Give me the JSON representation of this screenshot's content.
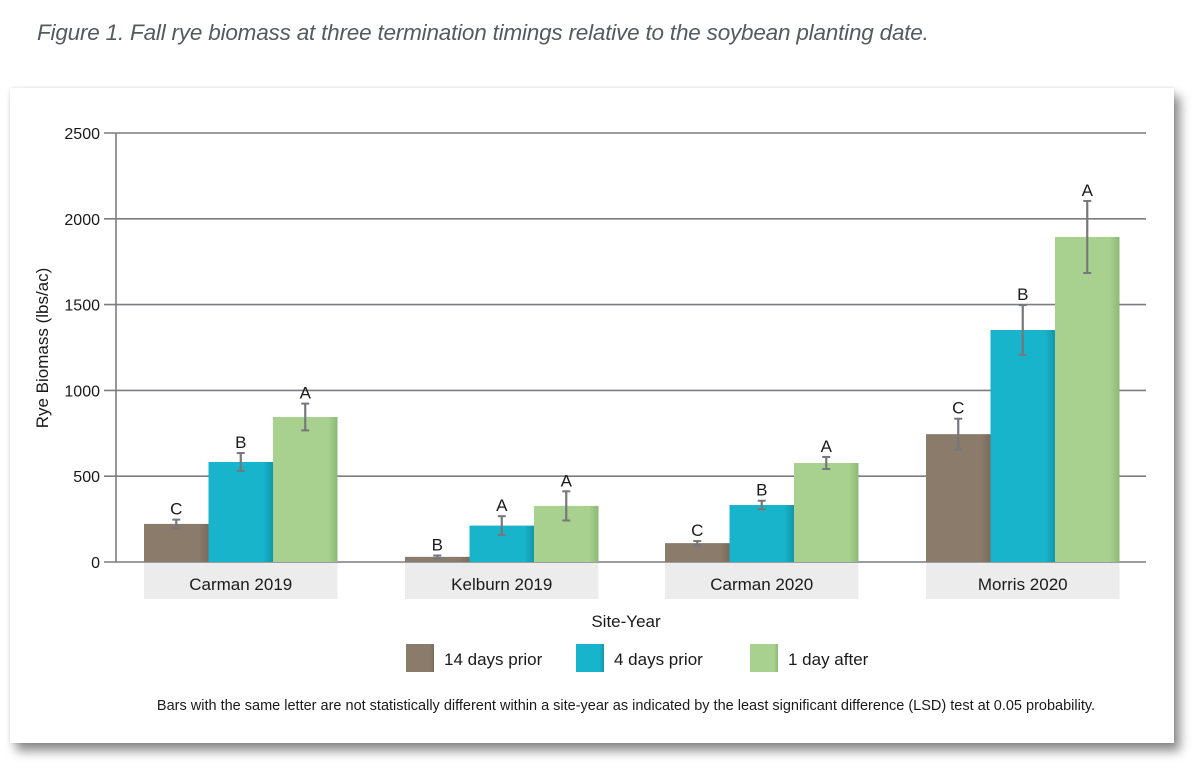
{
  "figure_title": "Figure 1. Fall rye biomass at three termination timings relative to the soybean planting date.",
  "footnote": "Bars with the same letter are not statistically different within a site-year as indicated by the least significant difference (LSD) test at 0.05 probability.",
  "chart_data": {
    "type": "bar",
    "title": "Figure 1. Fall rye biomass at three termination timings relative to the soybean planting date.",
    "xlabel": "Site-Year",
    "ylabel": "Rye Biomass (lbs/ac)",
    "ylim": [
      0,
      2500
    ],
    "yticks": [
      0,
      500,
      1000,
      1500,
      2000,
      2500
    ],
    "grid": true,
    "legend_position": "bottom",
    "categories": [
      "Carman 2019",
      "Kelburn 2019",
      "Carman 2020",
      "Morris 2020"
    ],
    "series": [
      {
        "name": "14 days prior",
        "color": "#8b7b6b",
        "values": [
          222,
          30,
          110,
          745
        ],
        "errors": [
          25,
          8,
          12,
          90
        ],
        "letters": [
          "C",
          "B",
          "C",
          "C"
        ]
      },
      {
        "name": "4 days prior",
        "color": "#18b4cb",
        "values": [
          583,
          212,
          332,
          1352
        ],
        "errors": [
          52,
          55,
          25,
          145
        ],
        "letters": [
          "B",
          "A",
          "B",
          "B"
        ]
      },
      {
        "name": "1 day after",
        "color": "#a8d18f",
        "values": [
          845,
          327,
          577,
          1894
        ],
        "errors": [
          78,
          85,
          35,
          210
        ],
        "letters": [
          "A",
          "A",
          "A",
          "A"
        ]
      }
    ]
  }
}
